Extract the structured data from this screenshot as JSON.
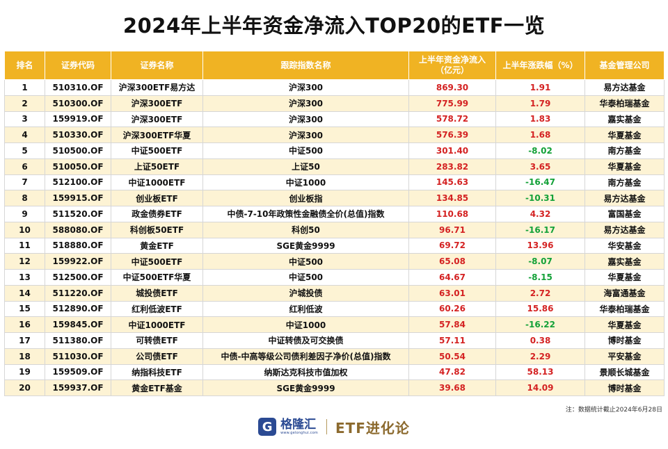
{
  "title": "2024年上半年资金净流入TOP20的ETF一览",
  "headers": {
    "rank": "排名",
    "code": "证券代码",
    "name": "证券名称",
    "index": "跟踪指数名称",
    "inflow": "上半年资金净流入\n（亿元）",
    "change": "上半年涨跌幅（%）",
    "manager": "基金管理公司"
  },
  "rows": [
    {
      "rank": "1",
      "code": "510310.OF",
      "name": "沪深300ETF易方达",
      "index": "沪深300",
      "inflow": "869.30",
      "change": "1.91",
      "manager": "易方达基金"
    },
    {
      "rank": "2",
      "code": "510300.OF",
      "name": "沪深300ETF",
      "index": "沪深300",
      "inflow": "775.99",
      "change": "1.79",
      "manager": "华泰柏瑞基金"
    },
    {
      "rank": "3",
      "code": "159919.OF",
      "name": "沪深300ETF",
      "index": "沪深300",
      "inflow": "578.72",
      "change": "1.83",
      "manager": "嘉实基金"
    },
    {
      "rank": "4",
      "code": "510330.OF",
      "name": "沪深300ETF华夏",
      "index": "沪深300",
      "inflow": "576.39",
      "change": "1.68",
      "manager": "华夏基金"
    },
    {
      "rank": "5",
      "code": "510500.OF",
      "name": "中证500ETF",
      "index": "中证500",
      "inflow": "301.40",
      "change": "-8.02",
      "manager": "南方基金"
    },
    {
      "rank": "6",
      "code": "510050.OF",
      "name": "上证50ETF",
      "index": "上证50",
      "inflow": "283.82",
      "change": "3.65",
      "manager": "华夏基金"
    },
    {
      "rank": "7",
      "code": "512100.OF",
      "name": "中证1000ETF",
      "index": "中证1000",
      "inflow": "145.63",
      "change": "-16.47",
      "manager": "南方基金"
    },
    {
      "rank": "8",
      "code": "159915.OF",
      "name": "创业板ETF",
      "index": "创业板指",
      "inflow": "134.85",
      "change": "-10.31",
      "manager": "易方达基金"
    },
    {
      "rank": "9",
      "code": "511520.OF",
      "name": "政金债券ETF",
      "index": "中债-7-10年政策性金融债全价(总值)指数",
      "inflow": "110.68",
      "change": "4.32",
      "manager": "富国基金"
    },
    {
      "rank": "10",
      "code": "588080.OF",
      "name": "科创板50ETF",
      "index": "科创50",
      "inflow": "96.71",
      "change": "-16.17",
      "manager": "易方达基金"
    },
    {
      "rank": "11",
      "code": "518880.OF",
      "name": "黄金ETF",
      "index": "SGE黄金9999",
      "inflow": "69.72",
      "change": "13.96",
      "manager": "华安基金"
    },
    {
      "rank": "12",
      "code": "159922.OF",
      "name": "中证500ETF",
      "index": "中证500",
      "inflow": "65.08",
      "change": "-8.07",
      "manager": "嘉实基金"
    },
    {
      "rank": "13",
      "code": "512500.OF",
      "name": "中证500ETF华夏",
      "index": "中证500",
      "inflow": "64.67",
      "change": "-8.15",
      "manager": "华夏基金"
    },
    {
      "rank": "14",
      "code": "511220.OF",
      "name": "城投债ETF",
      "index": "沪城投债",
      "inflow": "63.01",
      "change": "2.72",
      "manager": "海富通基金"
    },
    {
      "rank": "15",
      "code": "512890.OF",
      "name": "红利低波ETF",
      "index": "红利低波",
      "inflow": "60.26",
      "change": "15.86",
      "manager": "华泰柏瑞基金"
    },
    {
      "rank": "16",
      "code": "159845.OF",
      "name": "中证1000ETF",
      "index": "中证1000",
      "inflow": "57.84",
      "change": "-16.22",
      "manager": "华夏基金"
    },
    {
      "rank": "17",
      "code": "511380.OF",
      "name": "可转债ETF",
      "index": "中证转债及可交换债",
      "inflow": "57.11",
      "change": "0.38",
      "manager": "博时基金"
    },
    {
      "rank": "18",
      "code": "511030.OF",
      "name": "公司债ETF",
      "index": "中债-中高等级公司债利差因子净价(总值)指数",
      "inflow": "50.54",
      "change": "2.29",
      "manager": "平安基金"
    },
    {
      "rank": "19",
      "code": "159509.OF",
      "name": "纳指科技ETF",
      "index": "纳斯达克科技市值加权",
      "inflow": "47.82",
      "change": "58.13",
      "manager": "景顺长城基金"
    },
    {
      "rank": "20",
      "code": "159937.OF",
      "name": "黄金ETF基金",
      "index": "SGE黄金9999",
      "inflow": "39.68",
      "change": "14.09",
      "manager": "博时基金"
    }
  ],
  "note": "注：数据统计截止2024年6月28日",
  "footer": {
    "logo_mark": "G",
    "logo_text": "格隆汇",
    "logo_url": "www.gelonghui.com",
    "column_name": "ETF进化论"
  },
  "colors": {
    "header_bg": "#f0b323",
    "stripe_bg": "#fdf3d4",
    "positive": "#d42222",
    "negative": "#13a138",
    "brand_blue": "#2b4a93",
    "brand_gold": "#8c6a2e"
  }
}
